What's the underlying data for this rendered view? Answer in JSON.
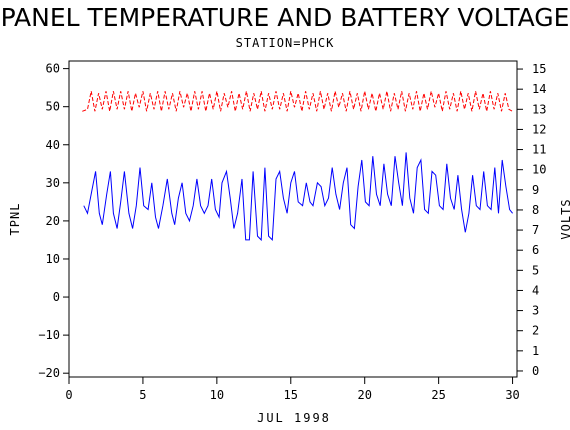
{
  "chart_data": {
    "type": "line",
    "title": "PANEL TEMPERATURE AND BATTERY VOLTAGE",
    "subtitle": "STATION=PHCK",
    "xlabel": "JUL 1998",
    "ylabel": "TPNL",
    "y2label": "VOLTS",
    "xlim": [
      0,
      30.3
    ],
    "ylim": [
      -21,
      62
    ],
    "y2lim": [
      -0.3,
      15.4
    ],
    "xticks": [
      0,
      5,
      10,
      15,
      20,
      25,
      30
    ],
    "yticks": [
      -20,
      -10,
      0,
      10,
      20,
      30,
      40,
      50,
      60
    ],
    "y2ticks": [
      0,
      1,
      2,
      3,
      4,
      5,
      6,
      7,
      8,
      9,
      10,
      11,
      12,
      13,
      14,
      15
    ],
    "grid": false,
    "series": [
      {
        "axis": "left",
        "color": "#0000ff",
        "style": "solid",
        "x": [
          1.0,
          1.25,
          1.55,
          1.8,
          2.05,
          2.25,
          2.55,
          2.8,
          3.0,
          3.25,
          3.5,
          3.75,
          4.05,
          4.3,
          4.55,
          4.8,
          5.05,
          5.35,
          5.6,
          5.85,
          6.05,
          6.35,
          6.65,
          6.95,
          7.15,
          7.4,
          7.65,
          7.9,
          8.15,
          8.4,
          8.65,
          8.9,
          9.15,
          9.4,
          9.65,
          9.9,
          10.15,
          10.35,
          10.65,
          10.9,
          11.15,
          11.4,
          11.7,
          11.95,
          12.2,
          12.45,
          12.75,
          13.0,
          13.25,
          13.5,
          13.75,
          14.0,
          14.25,
          14.5,
          14.75,
          15.0,
          15.25,
          15.5,
          15.8,
          16.05,
          16.3,
          16.5,
          16.8,
          17.05,
          17.3,
          17.55,
          17.8,
          18.05,
          18.3,
          18.55,
          18.8,
          19.05,
          19.3,
          19.55,
          19.8,
          20.05,
          20.3,
          20.55,
          20.8,
          21.05,
          21.3,
          21.55,
          21.8,
          22.05,
          22.3,
          22.55,
          22.8,
          23.05,
          23.3,
          23.55,
          23.8,
          24.05,
          24.3,
          24.55,
          24.8,
          25.05,
          25.3,
          25.55,
          25.8,
          26.05,
          26.3,
          26.55,
          26.8,
          27.05,
          27.3,
          27.55,
          27.8,
          28.05,
          28.3,
          28.55,
          28.8,
          29.05,
          29.3,
          29.55,
          29.8,
          30.0
        ],
        "values": [
          24,
          22,
          28,
          33,
          22,
          19,
          27,
          33,
          22,
          18,
          25,
          33,
          22,
          18,
          24,
          34,
          24,
          23,
          30,
          21,
          18,
          24,
          31,
          22,
          19,
          26,
          30,
          22,
          20,
          24,
          31,
          24,
          22,
          24,
          31,
          23,
          21,
          30,
          33,
          26,
          18,
          22,
          31,
          15,
          15,
          33,
          16,
          15,
          34,
          16,
          15,
          31,
          33,
          26,
          22,
          30,
          33,
          25,
          24,
          30,
          25,
          24,
          30,
          29,
          24,
          26,
          34,
          27,
          23,
          30,
          34,
          19,
          18,
          29,
          36,
          25,
          24,
          37,
          27,
          24,
          35,
          27,
          24,
          37,
          30,
          24,
          38,
          26,
          22,
          34,
          36,
          23,
          22,
          33,
          32,
          24,
          23,
          35,
          26,
          23,
          32,
          23,
          17,
          22,
          32,
          24,
          23,
          33,
          24,
          23,
          34,
          22,
          36,
          29,
          23,
          22
        ]
      },
      {
        "axis": "right",
        "color": "#ff0000",
        "style": "dashed",
        "x": [
          0.9,
          1.25,
          1.5,
          1.75,
          2.0,
          2.25,
          2.5,
          2.75,
          3.0,
          3.25,
          3.5,
          3.75,
          4.0,
          4.25,
          4.5,
          4.75,
          5.0,
          5.25,
          5.5,
          5.75,
          6.0,
          6.25,
          6.5,
          6.75,
          7.0,
          7.25,
          7.5,
          7.75,
          8.0,
          8.25,
          8.5,
          8.75,
          9.0,
          9.25,
          9.5,
          9.75,
          10.0,
          10.25,
          10.5,
          10.75,
          11.0,
          11.25,
          11.5,
          11.75,
          12.0,
          12.25,
          12.5,
          12.75,
          13.0,
          13.25,
          13.5,
          13.75,
          14.0,
          14.25,
          14.5,
          14.75,
          15.0,
          15.25,
          15.5,
          15.75,
          16.0,
          16.25,
          16.5,
          16.75,
          17.0,
          17.25,
          17.5,
          17.75,
          18.0,
          18.25,
          18.5,
          18.75,
          19.0,
          19.25,
          19.5,
          19.75,
          20.0,
          20.25,
          20.5,
          20.75,
          21.0,
          21.25,
          21.5,
          21.75,
          22.0,
          22.25,
          22.5,
          22.75,
          23.0,
          23.25,
          23.5,
          23.75,
          24.0,
          24.25,
          24.5,
          24.75,
          25.0,
          25.25,
          25.5,
          25.75,
          26.0,
          26.25,
          26.5,
          26.75,
          27.0,
          27.25,
          27.5,
          27.75,
          28.0,
          28.25,
          28.5,
          28.75,
          29.0,
          29.25,
          29.5,
          29.75,
          30.0
        ],
        "values": [
          12.9,
          13.0,
          13.9,
          12.9,
          13.8,
          13.0,
          13.9,
          12.9,
          13.9,
          13.0,
          13.9,
          13.0,
          13.9,
          12.9,
          13.8,
          13.1,
          13.9,
          12.9,
          13.8,
          13.0,
          13.9,
          12.9,
          13.9,
          13.0,
          13.8,
          12.9,
          13.9,
          13.1,
          13.8,
          12.9,
          13.9,
          13.0,
          13.9,
          12.9,
          13.8,
          13.0,
          13.9,
          12.9,
          13.8,
          13.1,
          13.9,
          12.9,
          13.8,
          13.0,
          13.9,
          12.9,
          13.8,
          13.0,
          13.9,
          12.9,
          13.8,
          13.0,
          13.9,
          13.0,
          13.8,
          12.9,
          13.9,
          13.1,
          13.8,
          12.9,
          13.9,
          13.0,
          13.8,
          12.9,
          13.9,
          13.0,
          13.8,
          12.9,
          13.9,
          13.1,
          13.8,
          12.9,
          13.9,
          13.0,
          13.8,
          12.9,
          13.9,
          13.0,
          13.8,
          12.9,
          13.8,
          13.0,
          13.9,
          12.9,
          13.8,
          13.0,
          13.9,
          12.9,
          13.8,
          13.0,
          13.9,
          12.9,
          13.8,
          13.0,
          13.9,
          13.1,
          13.8,
          12.9,
          13.9,
          13.0,
          13.8,
          12.9,
          13.9,
          13.0,
          13.8,
          12.9,
          13.9,
          13.0,
          13.8,
          12.9,
          13.9,
          13.0,
          13.8,
          12.9,
          13.8,
          13.0,
          12.9
        ]
      }
    ]
  }
}
